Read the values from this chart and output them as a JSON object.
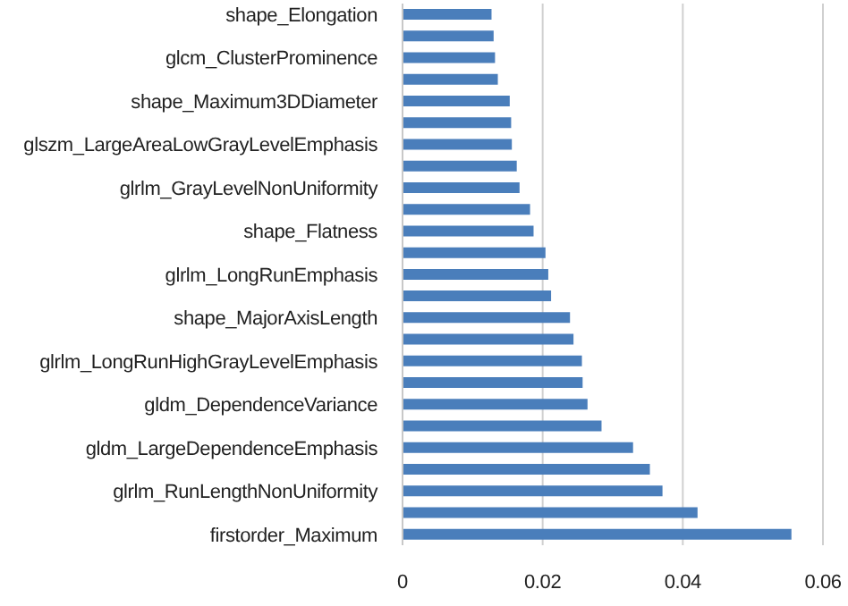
{
  "chart_data": {
    "type": "bar",
    "orientation": "horizontal",
    "categories": [
      "shape_Elongation",
      null,
      "glcm_ClusterProminence",
      null,
      "shape_Maximum3DDiameter",
      null,
      "glszm_LargeAreaLowGrayLevelEmphasis",
      null,
      "glrlm_GrayLevelNonUniformity",
      null,
      "shape_Flatness",
      null,
      "glrlm_LongRunEmphasis",
      null,
      "shape_MajorAxisLength",
      null,
      "glrlm_LongRunHighGrayLevelEmphasis",
      null,
      "gldm_DependenceVariance",
      null,
      "gldm_LargeDependenceEmphasis",
      null,
      "glrlm_RunLengthNonUniformity",
      null,
      "firstorder_Maximum"
    ],
    "values": [
      0.0127,
      0.013,
      0.0132,
      0.0136,
      0.0153,
      0.0155,
      0.0156,
      0.0163,
      0.0167,
      0.0182,
      0.0187,
      0.0204,
      0.0208,
      0.0212,
      0.0239,
      0.0244,
      0.0256,
      0.0257,
      0.0264,
      0.0284,
      0.0329,
      0.0353,
      0.0371,
      0.0421,
      0.0555
    ],
    "color": "#4a7ebb",
    "xlim": [
      0,
      0.06
    ],
    "xticks": [
      0,
      0.02,
      0.04,
      0.06
    ],
    "grid": "x"
  }
}
